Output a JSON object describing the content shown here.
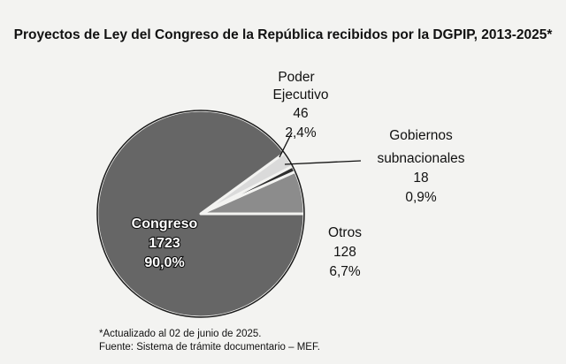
{
  "chart_data": {
    "type": "pie",
    "title": "Proyectos de Ley del Congreso de la República recibidos por la DGPIP, 2013-2025*",
    "slices": [
      {
        "label": "Otros",
        "value": 128,
        "percent_label": "6,7%",
        "color": "#8c8c8c"
      },
      {
        "label": "Gobiernos subnacionales",
        "value": 18,
        "percent_label": "0,9%",
        "color": "#2e2e2e"
      },
      {
        "label": "Poder Ejecutivo",
        "value": 46,
        "percent_label": "2,4%",
        "color": "#dadada"
      },
      {
        "label": "Congreso",
        "value": 1723,
        "percent_label": "90,0%",
        "color": "#666666"
      }
    ]
  },
  "footnotes": {
    "note": "*Actualizado al 02 de junio de 2025.",
    "source": "Fuente: Sistema de trámite documentario – MEF."
  }
}
